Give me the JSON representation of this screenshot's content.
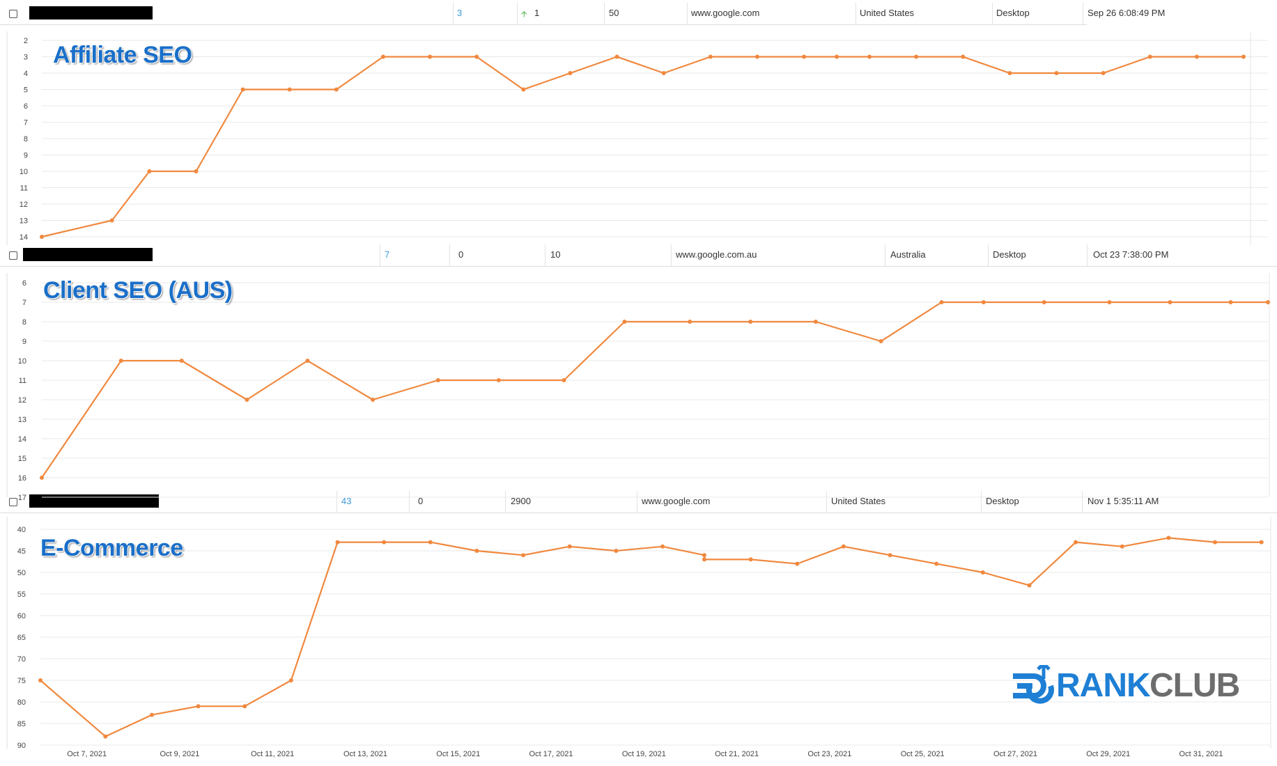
{
  "colors": {
    "line": "#f0883e",
    "grid": "#e8e8e8",
    "axis_text": "#444444",
    "rank_link": "#3a9ad9",
    "title": "#1a6fc9",
    "logo_blue": "#1e7fd4",
    "logo_gray": "#6d6d6d"
  },
  "rows": [
    {
      "rank": "3",
      "change": "1",
      "change_icon": "up-arrow-icon",
      "volume": "50",
      "engine": "www.google.com",
      "country": "United States",
      "device": "Desktop",
      "date": "Sep 26 6:08:49 PM"
    },
    {
      "rank": "7",
      "change": "0",
      "volume": "10",
      "engine": "www.google.com.au",
      "country": "Australia",
      "device": "Desktop",
      "date": "Oct 23 7:38:00 PM"
    },
    {
      "rank": "43",
      "change": "0",
      "volume": "2900",
      "engine": "www.google.com",
      "country": "United States",
      "device": "Desktop",
      "date": "Nov 1 5:35:11 AM"
    }
  ],
  "chart_data": [
    {
      "type": "line",
      "title": "Affiliate SEO",
      "y_inverted": true,
      "ylim": [
        2,
        14
      ],
      "y_ticks": [
        "2",
        "3",
        "4",
        "5",
        "6",
        "7",
        "8",
        "9",
        "10",
        "11",
        "12",
        "13",
        "14"
      ],
      "grid": true,
      "x_range_days": [
        6,
        31.7
      ],
      "series": [
        {
          "x": [
            6,
            7.5,
            8.3,
            9.3,
            10.3,
            11.3,
            12.3,
            13.3,
            14.3,
            15.3,
            16.3,
            17.3,
            18.3,
            19.3,
            20.3,
            21.3,
            22.3,
            23.0,
            23.7,
            24.7,
            25.7,
            26.7,
            27.7,
            28.7,
            29.7,
            30.7,
            31.7
          ],
          "y": [
            14,
            13,
            10,
            10,
            5,
            5,
            5,
            3,
            3,
            3,
            5,
            4,
            3,
            4,
            3,
            3,
            3,
            3,
            3,
            3,
            3,
            4,
            4,
            4,
            3,
            3,
            3
          ]
        }
      ]
    },
    {
      "type": "line",
      "title": "Client SEO (AUS)",
      "y_inverted": true,
      "ylim": [
        6,
        17
      ],
      "y_ticks": [
        "6",
        "7",
        "8",
        "9",
        "10",
        "11",
        "12",
        "13",
        "14",
        "15",
        "16",
        "17"
      ],
      "grid": true,
      "x_range_days": [
        6,
        32.3
      ],
      "series": [
        {
          "x": [
            6,
            7.7,
            9.0,
            10.4,
            11.7,
            13.1,
            14.5,
            15.8,
            17.2,
            18.5,
            19.9,
            21.2,
            22.6,
            24.0,
            25.3,
            26.2,
            27.5,
            28.9,
            30.2,
            31.5,
            32.3
          ],
          "y": [
            16,
            10,
            10,
            12,
            10,
            12,
            11,
            11,
            11,
            8,
            8,
            8,
            8,
            9,
            7,
            7,
            7,
            7,
            7,
            7,
            7
          ]
        }
      ]
    },
    {
      "type": "line",
      "title": "E-Commerce",
      "y_inverted": true,
      "ylim": [
        40,
        90
      ],
      "y_ticks": [
        "40",
        "45",
        "50",
        "55",
        "60",
        "65",
        "70",
        "75",
        "80",
        "85",
        "90"
      ],
      "x_ticks": [
        "Oct 7, 2021",
        "Oct 9, 2021",
        "Oct 11, 2021",
        "Oct 13, 2021",
        "Oct 15, 2021",
        "Oct 17, 2021",
        "Oct 19, 2021",
        "Oct 21, 2021",
        "Oct 23, 2021",
        "Oct 25, 2021",
        "Oct 27, 2021",
        "Oct 29, 2021",
        "Oct 31, 2021"
      ],
      "grid": true,
      "x_range_days": [
        6,
        32.5
      ],
      "series": [
        {
          "x": [
            6,
            7.4,
            8.4,
            9.4,
            10.4,
            11.4,
            12.4,
            13.4,
            14.4,
            15.4,
            16.4,
            17.4,
            18.4,
            19.4,
            20.3,
            20.3,
            21.3,
            22.3,
            23.3,
            24.3,
            25.3,
            26.3,
            27.3,
            28.3,
            29.3,
            30.3,
            31.3,
            32.3
          ],
          "y": [
            75,
            88,
            83,
            81,
            81,
            75,
            43,
            43,
            43,
            45,
            46,
            44,
            45,
            44,
            46,
            47,
            47,
            48,
            44,
            46,
            48,
            50,
            53,
            43,
            44,
            42,
            43,
            43
          ]
        }
      ]
    }
  ],
  "logo": {
    "part1": "RANK",
    "part2": "CLUB"
  }
}
